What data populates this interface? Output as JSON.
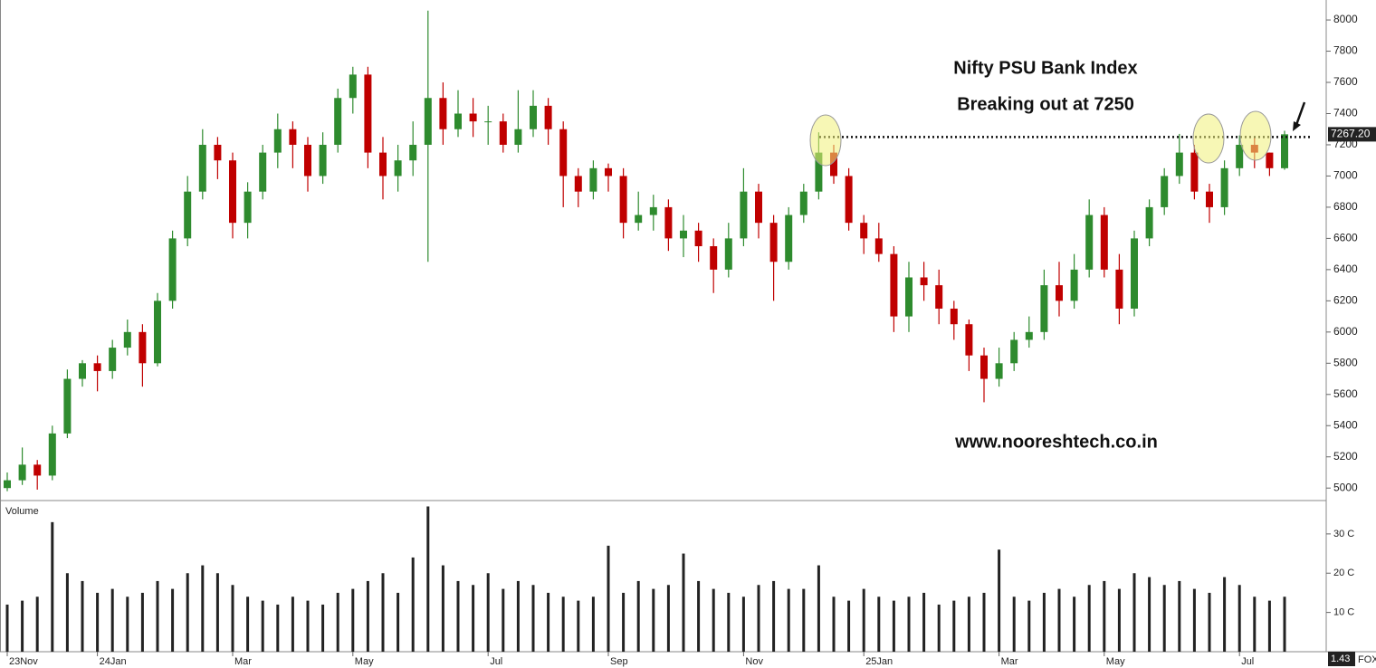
{
  "chart_data": {
    "type": "candlestick",
    "title": "Nifty PSU Bank Index",
    "subtitle": "Breaking out at 7250",
    "annotation": "www.nooreshtech.co.in",
    "resistance_level": 7250,
    "last_price_label": "7267.20",
    "categories": [
      "23Nov",
      null,
      null,
      null,
      null,
      null,
      "24Jan",
      null,
      null,
      null,
      null,
      null,
      null,
      null,
      null,
      "Mar",
      null,
      null,
      null,
      null,
      null,
      null,
      null,
      "May",
      null,
      null,
      null,
      null,
      null,
      null,
      null,
      null,
      "Jul",
      null,
      null,
      null,
      null,
      null,
      null,
      null,
      "Sep",
      null,
      null,
      null,
      null,
      null,
      null,
      null,
      null,
      "Nov",
      null,
      null,
      null,
      null,
      null,
      null,
      null,
      "25Jan",
      null,
      null,
      null,
      null,
      null,
      null,
      null,
      null,
      "Mar",
      null,
      null,
      null,
      null,
      null,
      null,
      "May",
      null,
      null,
      null,
      null,
      null,
      null,
      null,
      null,
      "Jul",
      null,
      null,
      null
    ],
    "open": [
      5000,
      5050,
      5150,
      5080,
      5350,
      5700,
      5800,
      5750,
      5900,
      6000,
      5800,
      6200,
      6600,
      6900,
      7200,
      7100,
      6700,
      6900,
      7150,
      7300,
      7200,
      7000,
      7200,
      7500,
      7650,
      7150,
      7000,
      7100,
      7200,
      7500,
      7300,
      7400,
      7350,
      7350,
      7200,
      7300,
      7450,
      7300,
      7000,
      6900,
      7050,
      7000,
      6700,
      6750,
      6800,
      6600,
      6650,
      6550,
      6400,
      6600,
      6900,
      6700,
      6450,
      6750,
      6900,
      7150,
      7000,
      6700,
      6600,
      6500,
      6100,
      6350,
      6300,
      6150,
      6050,
      5850,
      5700,
      5800,
      5950,
      6000,
      6300,
      6200,
      6400,
      6750,
      6400,
      6150,
      6600,
      6800,
      7000,
      7150,
      6900,
      6800,
      7050,
      7200,
      7150,
      7050
    ],
    "high": [
      5100,
      5260,
      5180,
      5400,
      5760,
      5820,
      5850,
      5950,
      6080,
      6050,
      6250,
      6650,
      7000,
      7300,
      7250,
      7150,
      6960,
      7200,
      7400,
      7350,
      7250,
      7280,
      7560,
      7700,
      7700,
      7250,
      7200,
      7350,
      8060,
      7600,
      7550,
      7500,
      7450,
      7400,
      7550,
      7550,
      7500,
      7350,
      7050,
      7100,
      7080,
      7050,
      6900,
      6880,
      6850,
      6750,
      6700,
      6600,
      6700,
      7050,
      6950,
      6750,
      6800,
      6950,
      7280,
      7200,
      7050,
      6750,
      6700,
      6550,
      6450,
      6450,
      6400,
      6200,
      6080,
      5900,
      5900,
      6000,
      6100,
      6400,
      6450,
      6500,
      6850,
      6800,
      6500,
      6650,
      6850,
      7050,
      7270,
      7200,
      6950,
      7100,
      7260,
      7250,
      7150,
      7290
    ],
    "low": [
      4980,
      5020,
      4990,
      5050,
      5320,
      5650,
      5620,
      5700,
      5850,
      5650,
      5780,
      6150,
      6550,
      6850,
      6980,
      6600,
      6600,
      6850,
      7050,
      7050,
      6900,
      6950,
      7150,
      7400,
      7050,
      6850,
      6900,
      7000,
      6450,
      7200,
      7250,
      7250,
      7200,
      7150,
      7150,
      7250,
      7200,
      6800,
      6800,
      6850,
      6900,
      6600,
      6650,
      6650,
      6520,
      6480,
      6450,
      6250,
      6350,
      6550,
      6600,
      6200,
      6400,
      6700,
      6850,
      6950,
      6650,
      6500,
      6450,
      6000,
      6000,
      6200,
      6050,
      5950,
      5750,
      5550,
      5650,
      5750,
      5900,
      5950,
      6100,
      6150,
      6350,
      6350,
      6050,
      6100,
      6550,
      6750,
      6950,
      6850,
      6700,
      6750,
      7000,
      7050,
      7000,
      7040
    ],
    "close": [
      5050,
      5150,
      5080,
      5350,
      5700,
      5800,
      5750,
      5900,
      6000,
      5800,
      6200,
      6600,
      6900,
      7200,
      7100,
      6700,
      6900,
      7150,
      7300,
      7200,
      7000,
      7200,
      7500,
      7650,
      7150,
      7000,
      7100,
      7200,
      7500,
      7300,
      7400,
      7350,
      7350,
      7200,
      7300,
      7450,
      7300,
      7000,
      6900,
      7050,
      7000,
      6700,
      6750,
      6800,
      6600,
      6650,
      6550,
      6400,
      6600,
      6900,
      6700,
      6450,
      6750,
      6900,
      7150,
      7000,
      6700,
      6600,
      6500,
      6100,
      6350,
      6300,
      6150,
      6050,
      5850,
      5700,
      5800,
      5950,
      6000,
      6300,
      6200,
      6400,
      6750,
      6400,
      6150,
      6600,
      6800,
      7000,
      7150,
      6900,
      6800,
      7050,
      7200,
      7150,
      7050,
      7267.2
    ],
    "up_color": "#2e8b2e",
    "down_color": "#c00000",
    "ylim": [
      4920,
      8128
    ],
    "yticks": [
      5000,
      5200,
      5400,
      5600,
      5800,
      6000,
      6200,
      6400,
      6600,
      6800,
      7000,
      7200,
      7400,
      7600,
      7800,
      8000
    ],
    "volume": {
      "label": "Volume",
      "color": "#222222",
      "values": [
        12,
        13,
        14,
        33,
        20,
        18,
        15,
        16,
        14,
        15,
        18,
        16,
        20,
        22,
        20,
        17,
        14,
        13,
        12,
        14,
        13,
        12,
        15,
        16,
        18,
        20,
        15,
        24,
        37,
        22,
        18,
        17,
        20,
        16,
        18,
        17,
        15,
        14,
        13,
        14,
        27,
        15,
        18,
        16,
        17,
        25,
        18,
        16,
        15,
        14,
        17,
        18,
        16,
        16,
        22,
        14,
        13,
        16,
        14,
        13,
        14,
        15,
        12,
        13,
        14,
        15,
        26,
        14,
        13,
        15,
        16,
        14,
        17,
        18,
        16,
        20,
        19,
        17,
        18,
        16,
        15,
        19,
        17,
        14,
        13,
        14
      ],
      "ylim": [
        0,
        38.5
      ],
      "yticks": [
        {
          "value": 10,
          "label": "10 C"
        },
        {
          "value": 20,
          "label": "20 C"
        },
        {
          "value": 30,
          "label": "30 C"
        }
      ],
      "axis_tag": "1.43",
      "corner_text": "FOX"
    }
  }
}
